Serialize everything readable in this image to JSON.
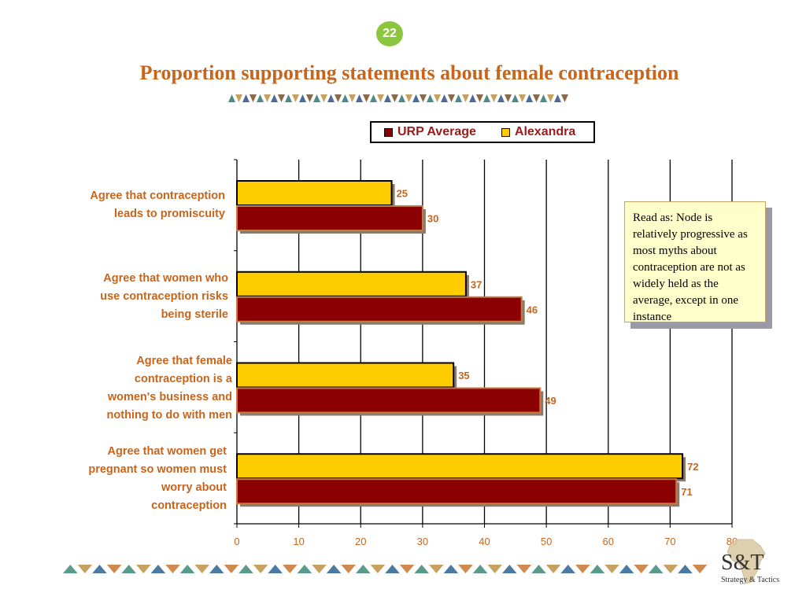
{
  "page": {
    "number": "22",
    "title": "Proportion supporting statements about female contraception"
  },
  "legend": {
    "items": [
      "URP Average",
      "Alexandra"
    ]
  },
  "note": {
    "text": "Read as: Node is relatively progressive as most myths about contraception are not as widely held as the average, except in one instance"
  },
  "logo": {
    "text": "S&T",
    "subtitle": "Strategy & Tactics"
  },
  "colors": {
    "urp": "#8b0000",
    "alexandra": "#ffcc00",
    "label": "#c8651b",
    "accent": "#8cc63f"
  },
  "chart_data": {
    "type": "bar",
    "orientation": "horizontal",
    "categories": [
      "Agree that contraception\nleads to promiscuity",
      "Agree that women who\nuse contraception risks\nbeing sterile",
      "Agree that female\ncontraception is a\nwomen's business and\nnothing to do with men",
      "Agree that women get\npregnant so women must\nworry about\ncontraception"
    ],
    "series": [
      {
        "name": "Alexandra",
        "values": [
          25,
          37,
          35,
          72
        ]
      },
      {
        "name": "URP Average",
        "values": [
          30,
          46,
          49,
          71
        ]
      }
    ],
    "xlim": [
      0,
      80
    ],
    "xticks": [
      "0",
      "10",
      "20",
      "30",
      "40",
      "50",
      "60",
      "70",
      "80"
    ],
    "grid": true,
    "legend_position": "top"
  }
}
